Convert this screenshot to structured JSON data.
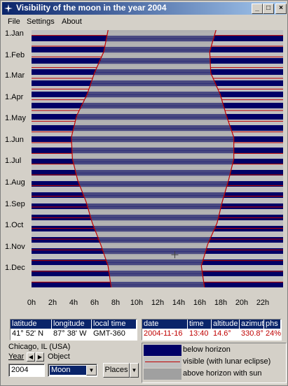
{
  "window": {
    "title": "Visibility of the moon in the year 2004",
    "buttons": {
      "minimize": "_",
      "maximize": "□",
      "close": "×"
    }
  },
  "menu": [
    "File",
    "Settings",
    "About"
  ],
  "chart_data": {
    "type": "heatmap",
    "title": "",
    "y_ticks": [
      "1.Jan",
      "1.Feb",
      "1.Mar",
      "1.Apr",
      "1.May",
      "1.Jun",
      "1.Jul",
      "1.Aug",
      "1.Sep",
      "1.Oct",
      "1.Nov",
      "1.Dec"
    ],
    "x_ticks": [
      "0h",
      "2h",
      "4h",
      "6h",
      "8h",
      "10h",
      "12h",
      "14h",
      "16h",
      "18h",
      "20h",
      "22h"
    ],
    "xlim": [
      0,
      24
    ],
    "ylim_days": [
      0,
      366
    ],
    "sunset_hours": [
      7.3,
      6.9,
      6.0,
      5.3,
      4.3,
      3.8,
      3.9,
      4.4,
      5.2,
      5.8,
      6.6,
      7.3,
      7.6
    ],
    "sunrise_hours": [
      17.6,
      17.0,
      17.1,
      18.0,
      18.6,
      19.3,
      19.3,
      18.8,
      18.2,
      17.7,
      16.8,
      16.2,
      16.5
    ],
    "legend": {
      "below": "below horizon",
      "visible": "visible (with lunar eclipse)",
      "above_sun": "above horizon with sun"
    },
    "colors": {
      "below": "#000066",
      "visible_light": "#c0c0c0",
      "sun": "#a0a0a0",
      "visible_line": "#c00000"
    }
  },
  "location": {
    "headers": [
      "latitude",
      "longitude",
      "local time"
    ],
    "values": [
      "41° 52'  N",
      "87° 38'  W",
      "GMT-360"
    ],
    "city": "Chicago, IL (USA)"
  },
  "position": {
    "headers": [
      "date",
      "time",
      "altitude",
      "azimut",
      "phs"
    ],
    "values": [
      "2004-11-16",
      "13:40",
      "14.6°",
      "330.8°",
      "24%"
    ]
  },
  "controls": {
    "year_label": "Year",
    "object_label": "Object",
    "year_value": "2004",
    "object_value": "Moon",
    "places_label": "Places"
  }
}
